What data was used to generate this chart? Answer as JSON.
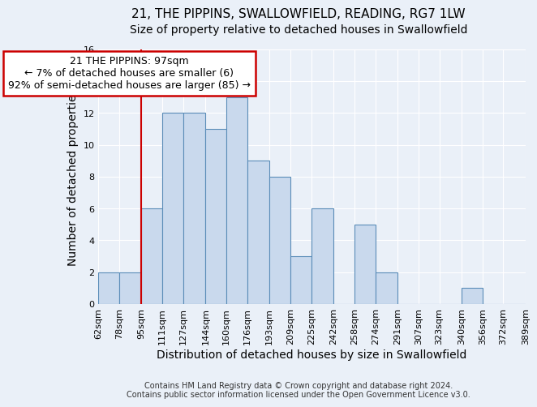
{
  "title1": "21, THE PIPPINS, SWALLOWFIELD, READING, RG7 1LW",
  "title2": "Size of property relative to detached houses in Swallowfield",
  "xlabel": "Distribution of detached houses by size in Swallowfield",
  "ylabel": "Number of detached properties",
  "footnote": "Contains HM Land Registry data © Crown copyright and database right 2024.\nContains public sector information licensed under the Open Government Licence v3.0.",
  "bin_edges": [
    62,
    78,
    95,
    111,
    127,
    144,
    160,
    176,
    193,
    209,
    225,
    242,
    258,
    274,
    291,
    307,
    323,
    340,
    356,
    372,
    389
  ],
  "bar_heights": [
    2,
    2,
    6,
    12,
    12,
    11,
    13,
    9,
    8,
    3,
    6,
    0,
    5,
    2,
    0,
    0,
    0,
    1,
    0,
    0
  ],
  "bar_color": "#c9d9ed",
  "bar_edge_color": "#5b8db8",
  "vline_x": 95,
  "vline_color": "#cc0000",
  "annotation_text": "21 THE PIPPINS: 97sqm\n← 7% of detached houses are smaller (6)\n92% of semi-detached houses are larger (85) →",
  "annotation_box_facecolor": "#ffffff",
  "annotation_box_edgecolor": "#cc0000",
  "ylim": [
    0,
    16
  ],
  "yticks": [
    0,
    2,
    4,
    6,
    8,
    10,
    12,
    14,
    16
  ],
  "background_color": "#eaf0f8",
  "grid_color": "#ffffff",
  "title_fontsize": 11,
  "subtitle_fontsize": 10,
  "xlabel_fontsize": 10,
  "ylabel_fontsize": 10,
  "tick_label_fontsize": 8,
  "annotation_fontsize": 9
}
